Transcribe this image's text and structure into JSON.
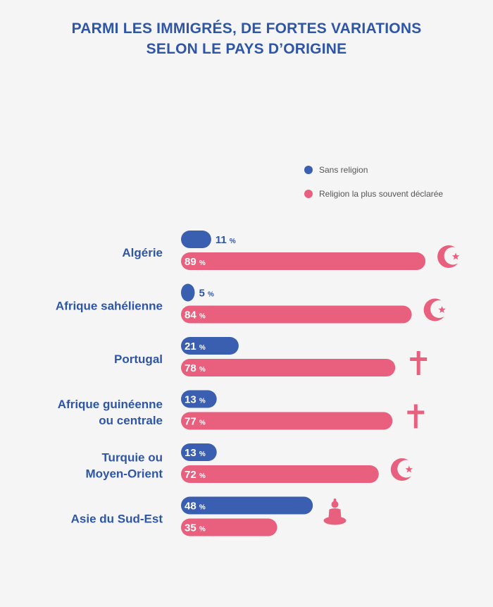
{
  "colors": {
    "blue": "#3b5fb0",
    "pink": "#e8607e",
    "title": "#2e55a6"
  },
  "header": {
    "title_line1": "PARMI LES IMMIGRÉS, DE FORTES VARIATIONS",
    "title_line2": "SELON LE PAYS D’ORIGINE"
  },
  "legend": {
    "sans_religion": "Sans religion",
    "religion": "Religion la plus souvent déclarée"
  },
  "chart_data": {
    "type": "bar",
    "orientation": "horizontal",
    "unit": "%",
    "xlim": [
      0,
      100
    ],
    "categories": [
      [
        "Algérie"
      ],
      [
        "Afrique sahélienne"
      ],
      [
        "Portugal"
      ],
      [
        "Afrique guinéenne",
        "ou centrale"
      ],
      [
        "Turquie ou",
        "Moyen-Orient"
      ],
      [
        "Asie du Sud-Est"
      ]
    ],
    "series": [
      {
        "name": "Sans religion",
        "values": [
          11,
          5,
          21,
          13,
          13,
          48
        ]
      },
      {
        "name": "Religion la plus souvent déclarée",
        "values": [
          89,
          84,
          78,
          77,
          72,
          35
        ]
      }
    ],
    "religion_icons": [
      "crescent-icon",
      "crescent-icon",
      "cross-icon",
      "cross-icon",
      "crescent-icon",
      "buddha-icon"
    ]
  }
}
